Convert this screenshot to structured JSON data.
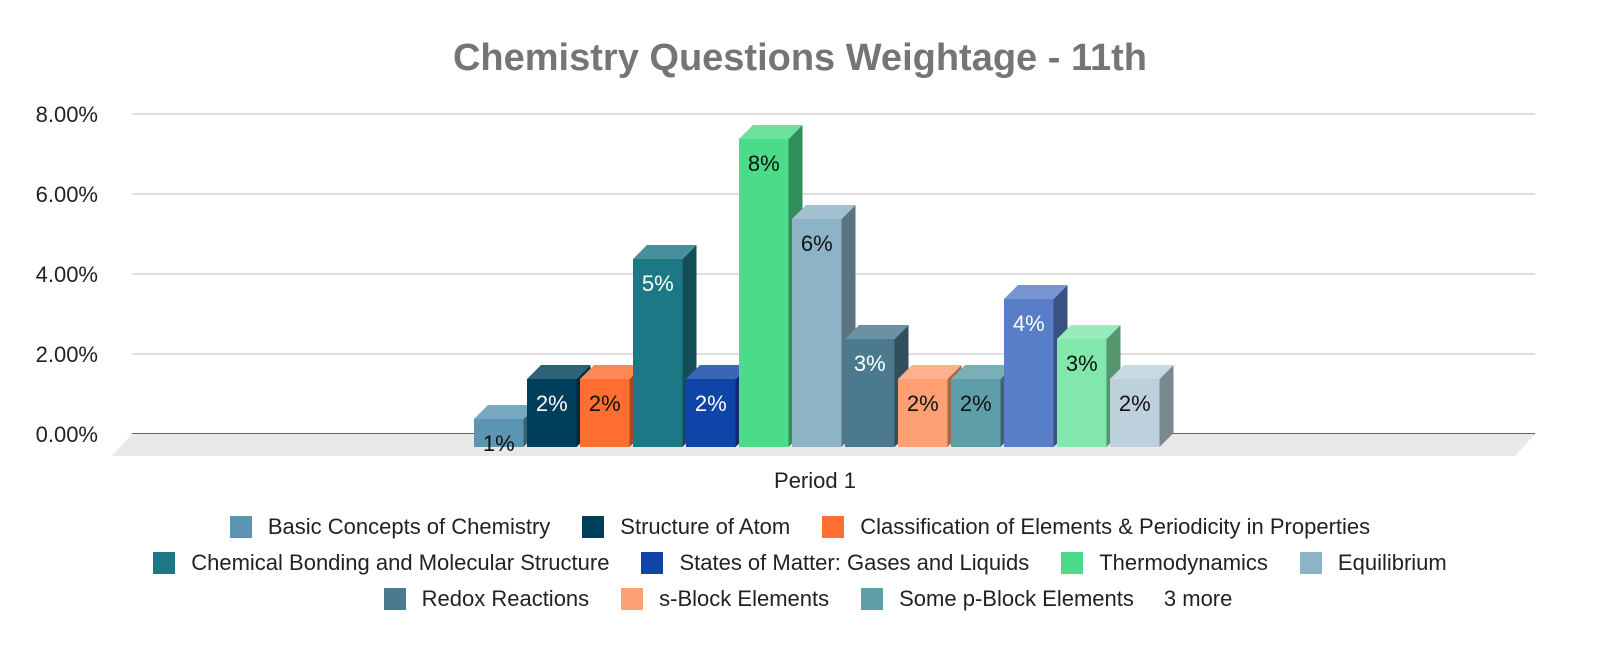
{
  "chart_data": {
    "type": "bar",
    "title": "Chemistry Questions Weightage - 11th",
    "categories": [
      "Period 1"
    ],
    "xlabel": "",
    "ylabel": "",
    "ylim": [
      0,
      8
    ],
    "yticks": [
      "0.00%",
      "2.00%",
      "4.00%",
      "6.00%",
      "8.00%"
    ],
    "grid": true,
    "legend_position": "bottom",
    "legend_more_label": "3 more",
    "series": [
      {
        "name": "Basic Concepts of Chemistry",
        "value": 0.7,
        "label": "1%",
        "color": "#5a95b3",
        "label_color": "#111111"
      },
      {
        "name": "Structure of Atom",
        "value": 1.7,
        "label": "2%",
        "color": "#003f5c",
        "label_color": "#ffffff"
      },
      {
        "name": "Classification of Elements & Periodicity in Properties",
        "value": 1.7,
        "label": "2%",
        "color": "#ff6f31",
        "label_color": "#111111"
      },
      {
        "name": "Chemical Bonding and Molecular Structure",
        "value": 4.7,
        "label": "5%",
        "color": "#1d7886",
        "label_color": "#ffffff"
      },
      {
        "name": "States of Matter: Gases and Liquids",
        "value": 1.7,
        "label": "2%",
        "color": "#0f45a8",
        "label_color": "#ffffff"
      },
      {
        "name": "Thermodynamics",
        "value": 7.7,
        "label": "8%",
        "color": "#4cdb89",
        "label_color": "#111111"
      },
      {
        "name": "Equilibrium",
        "value": 5.7,
        "label": "6%",
        "color": "#8db3c6",
        "label_color": "#111111"
      },
      {
        "name": "Redox Reactions",
        "value": 2.7,
        "label": "3%",
        "color": "#4b7a8f",
        "label_color": "#ffffff"
      },
      {
        "name": "s-Block Elements",
        "value": 1.7,
        "label": "2%",
        "color": "#ff9f74",
        "label_color": "#111111"
      },
      {
        "name": "Some p-Block Elements",
        "value": 1.7,
        "label": "2%",
        "color": "#5e9ea8",
        "label_color": "#111111"
      },
      {
        "name": "",
        "value": 3.7,
        "label": "4%",
        "color": "#587ec8",
        "label_color": "#ffffff"
      },
      {
        "name": "",
        "value": 2.7,
        "label": "3%",
        "color": "#81e7ad",
        "label_color": "#111111"
      },
      {
        "name": "",
        "value": 1.7,
        "label": "2%",
        "color": "#bcd1dc",
        "label_color": "#111111"
      }
    ]
  }
}
